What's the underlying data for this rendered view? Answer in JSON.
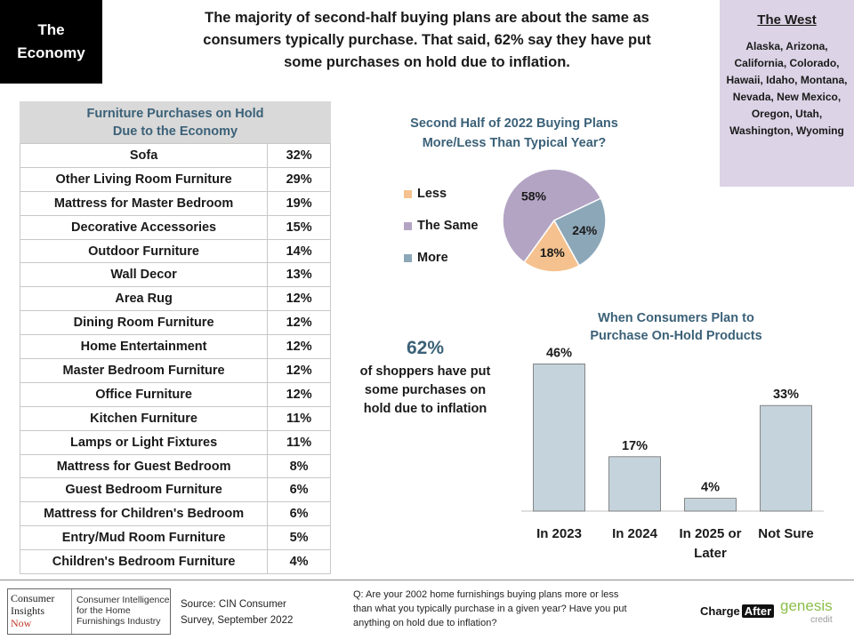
{
  "header": {
    "section_line1": "The",
    "section_line2": "Economy",
    "headline_line1": "The majority of second-half buying plans are about the same as",
    "headline_line2": "consumers typically purchase. That said, 62% say they have put",
    "headline_line3": "some purchases on hold due to inflation."
  },
  "region": {
    "title": "The West",
    "states": "Alaska, Arizona, California, Colorado, Hawaii, Idaho, Montana, Nevada, New Mexico, Oregon, Utah, Washington, Wyoming"
  },
  "callout": {
    "percent": "62%",
    "text_line1": "of shoppers have put",
    "text_line2": "some purchases on",
    "text_line3": "hold due to inflation"
  },
  "footer": {
    "logo_left_line1": "Consumer",
    "logo_left_line2": "Insights",
    "logo_left_line3": "Now",
    "logo_right_line1": "Consumer Intelligence",
    "logo_right_line2": "for the Home",
    "logo_right_line3": "Furnishings Industry",
    "source_line1": "Source: CIN Consumer",
    "source_line2": "Survey, September  2022",
    "question_line1": "Q: Are your 2002 home furnishings buying plans more or less",
    "question_line2": "than what you typically purchase in a given year? Have you put",
    "question_line3": "anything on hold due to inflation?",
    "chargeafter_charge": "Charge",
    "chargeafter_after": "After",
    "genesis": "genesis",
    "genesis_credit": "credit"
  },
  "chart_data": [
    {
      "type": "table",
      "title_line1": "Furniture Purchases on Hold",
      "title_line2": "Due to the Economy",
      "rows": [
        {
          "label": "Sofa",
          "value": "32%"
        },
        {
          "label": "Other Living Room Furniture",
          "value": "29%"
        },
        {
          "label": "Mattress for Master Bedroom",
          "value": "19%"
        },
        {
          "label": "Decorative Accessories",
          "value": "15%"
        },
        {
          "label": "Outdoor Furniture",
          "value": "14%"
        },
        {
          "label": "Wall Decor",
          "value": "13%"
        },
        {
          "label": "Area Rug",
          "value": "12%"
        },
        {
          "label": "Dining Room Furniture",
          "value": "12%"
        },
        {
          "label": "Home Entertainment",
          "value": "12%"
        },
        {
          "label": "Master Bedroom Furniture",
          "value": "12%"
        },
        {
          "label": "Office Furniture",
          "value": "12%"
        },
        {
          "label": "Kitchen Furniture",
          "value": "11%"
        },
        {
          "label": "Lamps or Light Fixtures",
          "value": "11%"
        },
        {
          "label": "Mattress for Guest Bedroom",
          "value": "8%"
        },
        {
          "label": "Guest Bedroom Furniture",
          "value": "6%"
        },
        {
          "label": "Mattress for Children's Bedroom",
          "value": "6%"
        },
        {
          "label": "Entry/Mud Room Furniture",
          "value": "5%"
        },
        {
          "label": "Children's Bedroom Furniture",
          "value": "4%"
        }
      ]
    },
    {
      "type": "pie",
      "title_line1": "Second Half of 2022 Buying Plans",
      "title_line2": "More/Less Than Typical Year?",
      "legend_position": "left",
      "slices": [
        {
          "name": "Less",
          "value": 18,
          "label": "18%",
          "color": "#f5c28f"
        },
        {
          "name": "The Same",
          "value": 58,
          "label": "58%",
          "color": "#b3a4c4"
        },
        {
          "name": "More",
          "value": 24,
          "label": "24%",
          "color": "#8ca7b8"
        }
      ]
    },
    {
      "type": "bar",
      "title_line1": "When Consumers Plan to",
      "title_line2": "Purchase On-Hold Products",
      "categories": [
        {
          "line1": "In 2023",
          "line2": ""
        },
        {
          "line1": "In 2024",
          "line2": ""
        },
        {
          "line1": "In 2025 or",
          "line2": "Later"
        },
        {
          "line1": "Not Sure",
          "line2": ""
        }
      ],
      "values": [
        46,
        17,
        4,
        33
      ],
      "labels": [
        "46%",
        "17%",
        "4%",
        "33%"
      ],
      "ylim": [
        0,
        50
      ],
      "bar_color": "#c5d3dc",
      "grid": false
    }
  ]
}
